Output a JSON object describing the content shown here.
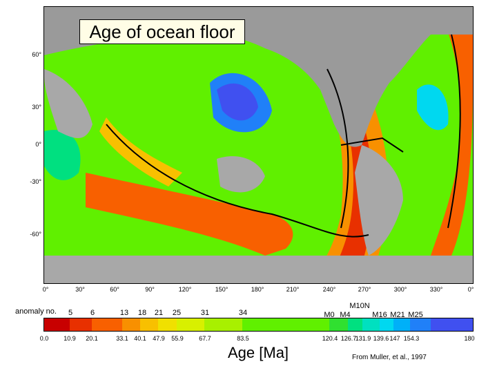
{
  "title": "Age of ocean floor",
  "lat_labels": [
    "60°",
    "30°",
    "0°",
    "-30°",
    "-60°"
  ],
  "lon_labels": [
    "0°",
    "30°",
    "60°",
    "90°",
    "120°",
    "150°",
    "180°",
    "210°",
    "240°",
    "270°",
    "300°",
    "330°",
    "0°"
  ],
  "colorbar": {
    "anomaly_caption": "anomaly no.",
    "anomaly_labels": [
      "5",
      "6",
      "13",
      "18",
      "21",
      "25",
      "31",
      "34",
      "M0",
      "M4",
      "M10N",
      "M16",
      "M21",
      "M25"
    ],
    "age_ticks": [
      "0.0",
      "10.9",
      "20.1",
      "33.1",
      "40.1",
      "47.9",
      "55.9",
      "67.7",
      "83.5",
      "120.4",
      "126.7",
      "131.9",
      "139.6",
      "147",
      "154.3",
      "180"
    ],
    "colors": [
      "#c80000",
      "#e83000",
      "#f86000",
      "#f89000",
      "#f8c000",
      "#f0e000",
      "#d8f000",
      "#a8f000",
      "#60f000",
      "#30e030",
      "#00e080",
      "#00e0c0",
      "#00d8f0",
      "#00b0f8",
      "#2080f8",
      "#4050f0"
    ],
    "unit_label": "Age [Ma]"
  },
  "credit": "From Muller, et al., 1997"
}
